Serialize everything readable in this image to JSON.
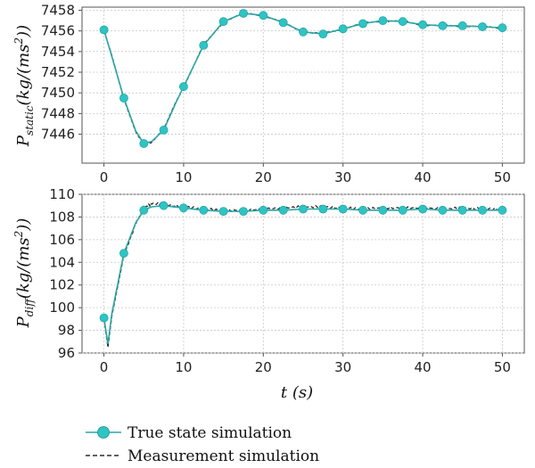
{
  "chart_data": [
    {
      "type": "line",
      "ylabel_main": "P",
      "ylabel_sub": "static",
      "ylabel_paren": "(kg/(ms",
      "ylabel_sup": "2",
      "ylabel_close": "))",
      "xlabel": "",
      "xlim": [
        0,
        50
      ],
      "ylim": [
        7443.2,
        7458.3
      ],
      "xticks": [
        0,
        10,
        20,
        30,
        40,
        50
      ],
      "yticks": [
        7446,
        7448,
        7450,
        7452,
        7454,
        7456,
        7458
      ],
      "grid": true,
      "series": [
        {
          "name": "True state simulation",
          "style": "solid-with-markers",
          "x": [
            0,
            1,
            2.5,
            4,
            5,
            6,
            7.5,
            9,
            10,
            12.5,
            15,
            17.5,
            20,
            22.5,
            25,
            27.5,
            30,
            32.5,
            35,
            37.5,
            40,
            42.5,
            45,
            47.5,
            50
          ],
          "y": [
            7456.1,
            7453.5,
            7449.5,
            7446.3,
            7445.1,
            7445.3,
            7446.4,
            7449.0,
            7450.6,
            7454.6,
            7456.9,
            7457.7,
            7457.5,
            7456.8,
            7455.9,
            7455.7,
            7456.2,
            7456.7,
            7457.0,
            7456.9,
            7456.6,
            7456.5,
            7456.5,
            7456.4,
            7456.3
          ],
          "markers_x": [
            0,
            2.5,
            5,
            7.5,
            10,
            12.5,
            15,
            17.5,
            20,
            22.5,
            25,
            27.5,
            30,
            32.5,
            35,
            37.5,
            40,
            42.5,
            45,
            47.5,
            50
          ],
          "markers_y": [
            7456.1,
            7449.5,
            7445.1,
            7446.4,
            7450.6,
            7454.6,
            7456.9,
            7457.7,
            7457.5,
            7456.8,
            7455.9,
            7455.7,
            7456.2,
            7456.7,
            7457.0,
            7456.9,
            7456.6,
            7456.5,
            7456.5,
            7456.4,
            7456.3
          ]
        },
        {
          "name": "Measurement simulation",
          "style": "dashed",
          "x": [
            0,
            1,
            2.5,
            4,
            5,
            6,
            7.5,
            9,
            10,
            12.5,
            15,
            17.5,
            20,
            22.5,
            25,
            27.5,
            30,
            32.5,
            35,
            37.5,
            40,
            42.5,
            45,
            47.5,
            50
          ],
          "y": [
            7456.0,
            7453.6,
            7449.4,
            7446.2,
            7445.0,
            7445.2,
            7446.5,
            7449.1,
            7450.5,
            7454.7,
            7456.8,
            7457.8,
            7457.4,
            7456.9,
            7455.8,
            7455.8,
            7456.1,
            7456.8,
            7456.9,
            7457.0,
            7456.5,
            7456.6,
            7456.4,
            7456.5,
            7456.2
          ]
        }
      ]
    },
    {
      "type": "line",
      "ylabel_main": "P",
      "ylabel_sub": "diff",
      "ylabel_paren": "(kg/(ms",
      "ylabel_sup": "2",
      "ylabel_close": "))",
      "xlabel": "t (s)",
      "xlim": [
        0,
        50
      ],
      "ylim": [
        96,
        110
      ],
      "xticks": [
        0,
        10,
        20,
        30,
        40,
        50
      ],
      "yticks": [
        96,
        98,
        100,
        102,
        104,
        106,
        108,
        110
      ],
      "grid": true,
      "series": [
        {
          "name": "True state simulation",
          "style": "solid-with-markers",
          "x": [
            0,
            0.5,
            1,
            2.5,
            4,
            5,
            6,
            7.5,
            10,
            12.5,
            15,
            17.5,
            20,
            22.5,
            25,
            27.5,
            30,
            32.5,
            35,
            37.5,
            40,
            42.5,
            45,
            47.5,
            50
          ],
          "y": [
            99.1,
            96.8,
            99.5,
            104.8,
            107.5,
            108.6,
            108.9,
            109.0,
            108.8,
            108.6,
            108.5,
            108.5,
            108.6,
            108.6,
            108.7,
            108.7,
            108.7,
            108.6,
            108.6,
            108.6,
            108.7,
            108.6,
            108.6,
            108.6,
            108.6
          ],
          "markers_x": [
            0,
            2.5,
            5,
            7.5,
            10,
            12.5,
            15,
            17.5,
            20,
            22.5,
            25,
            27.5,
            30,
            32.5,
            35,
            37.5,
            40,
            42.5,
            45,
            47.5,
            50
          ],
          "markers_y": [
            99.1,
            104.8,
            108.6,
            109.0,
            108.8,
            108.6,
            108.5,
            108.5,
            108.6,
            108.6,
            108.7,
            108.7,
            108.7,
            108.6,
            108.6,
            108.6,
            108.7,
            108.6,
            108.6,
            108.6,
            108.6
          ]
        },
        {
          "name": "Measurement simulation",
          "style": "dashed-noisy",
          "x": [
            0,
            0.5,
            1,
            2.5,
            4,
            5,
            6,
            7.5,
            10,
            12.5,
            15,
            17.5,
            20,
            22.5,
            25,
            27.5,
            30,
            32.5,
            35,
            37.5,
            40,
            42.5,
            45,
            47.5,
            50
          ],
          "y": [
            99.0,
            96.5,
            99.3,
            104.6,
            107.4,
            108.8,
            109.2,
            109.1,
            108.9,
            108.7,
            108.6,
            108.6,
            108.7,
            108.8,
            108.9,
            108.9,
            108.8,
            108.7,
            108.8,
            108.8,
            108.8,
            108.7,
            108.8,
            108.7,
            108.7
          ]
        }
      ]
    }
  ],
  "legend": {
    "placement": "bottom-left",
    "items": [
      {
        "label": "True state simulation",
        "style": "solid-with-markers"
      },
      {
        "label": "Measurement simulation",
        "style": "dashed"
      }
    ]
  },
  "colors": {
    "true_line": "#2aa5a5",
    "marker_fill": "#2ec4c4",
    "measure_line": "#2a2a2a",
    "grid": "#c8c8c8",
    "axis": "#555555"
  }
}
